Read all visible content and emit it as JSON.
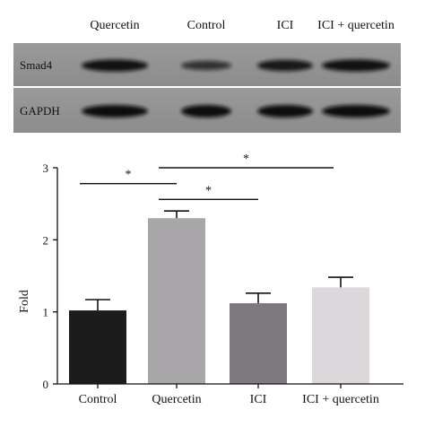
{
  "blot": {
    "lane_labels": [
      "Quercetin",
      "Control",
      "ICI",
      "ICI + quercetin"
    ],
    "rows": [
      {
        "protein": "Smad4",
        "band_intensities": [
          0.95,
          0.55,
          0.85,
          0.95
        ]
      },
      {
        "protein": "GAPDH",
        "band_intensities": [
          1.0,
          1.0,
          1.0,
          1.0
        ]
      }
    ]
  },
  "chart_data": {
    "type": "bar",
    "categories": [
      "Control",
      "Quercetin",
      "ICI",
      "ICI + quercetin"
    ],
    "values": [
      1.02,
      2.3,
      1.12,
      1.34
    ],
    "errors": [
      0.15,
      0.1,
      0.14,
      0.14
    ],
    "bar_colors": [
      "#1c1c1c",
      "#a9a6aa",
      "#7d797e",
      "#dcd8db"
    ],
    "ylabel": "Fold",
    "xlabel": "",
    "ylim": [
      0,
      3
    ],
    "yticks": [
      0,
      1,
      2,
      3
    ],
    "significance": [
      {
        "from": 0,
        "to": 1,
        "label": "*"
      },
      {
        "from": 1,
        "to": 2,
        "label": "*"
      },
      {
        "from": 1,
        "to": 3,
        "label": "*"
      }
    ]
  }
}
